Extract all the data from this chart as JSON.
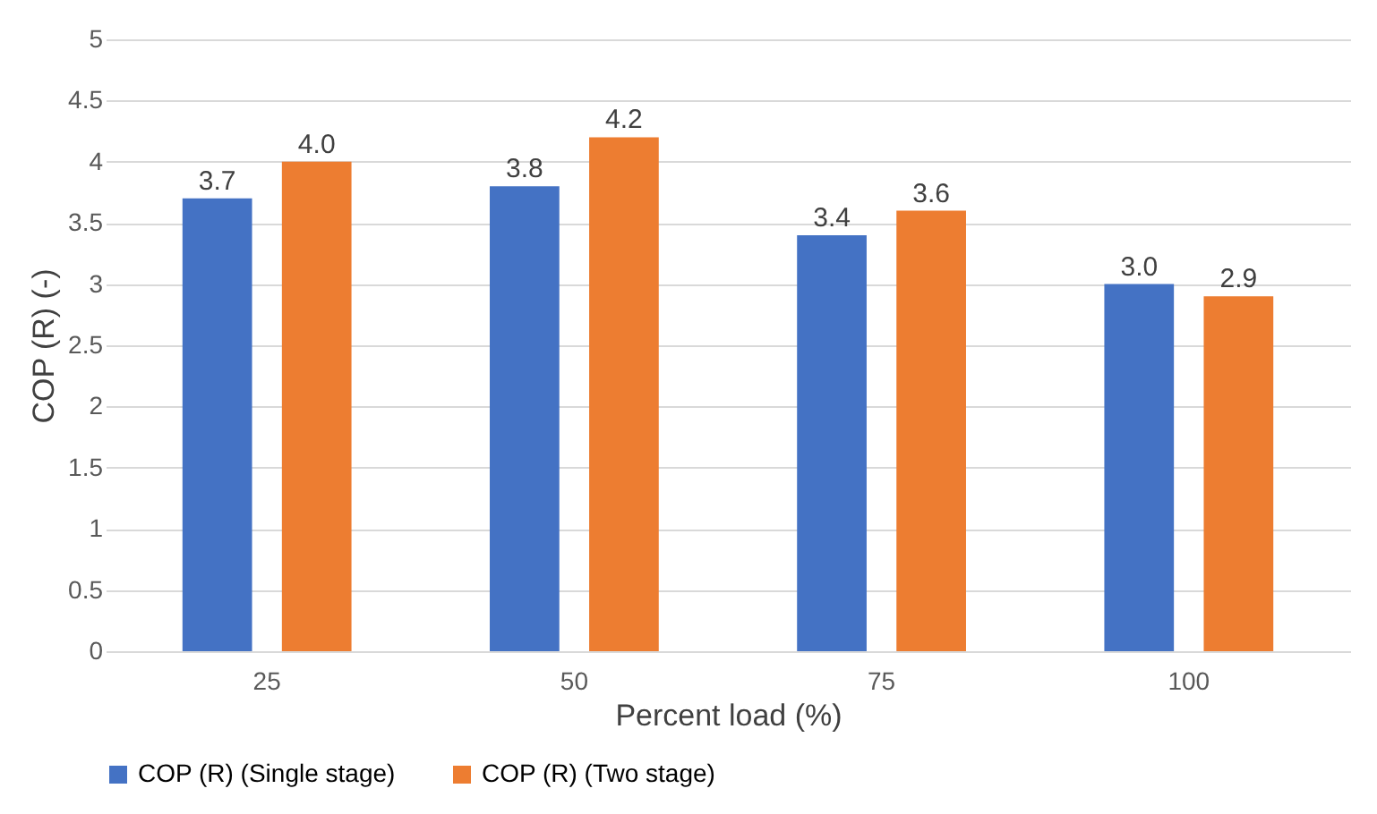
{
  "chart_data": {
    "type": "bar",
    "xlabel": "Percent load (%)",
    "ylabel": "COP (R) (-)",
    "categories": [
      "25",
      "50",
      "75",
      "100"
    ],
    "series": [
      {
        "name": "COP (R) (Single stage)",
        "color": "#4472c4",
        "values": [
          3.7,
          3.8,
          3.4,
          3.0
        ],
        "value_labels": [
          "3.7",
          "3.8",
          "3.4",
          "3.0"
        ]
      },
      {
        "name": "COP (R) (Two stage)",
        "color": "#ed7d31",
        "values": [
          4.0,
          4.2,
          3.6,
          2.9
        ],
        "value_labels": [
          "4.0",
          "4.2",
          "3.6",
          "2.9"
        ]
      }
    ],
    "ylim": [
      0,
      5
    ],
    "yticks": [
      0,
      0.5,
      1,
      1.5,
      2,
      2.5,
      3,
      3.5,
      4,
      4.5,
      5
    ],
    "grid": "y",
    "legend": "bottom",
    "data_labels": true
  }
}
